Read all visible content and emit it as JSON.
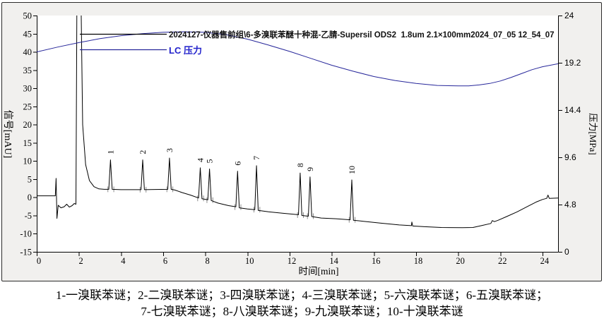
{
  "legend": {
    "title": "2024127-仪器售前组\\6-多溴联苯醚十种混-乙腈-Supersil ODS2  1.8um 2.1×100mm2024_07_05 12_54_07",
    "pressure_label": "LC 压力"
  },
  "caption": {
    "line1": "1-一溴联苯谜；2-二溴联苯谜；3-四溴联苯谜；4-三溴联苯谜；5-六溴联苯谜；6-五溴联苯谜；",
    "line2": "7-七溴联苯谜；8-八溴联苯谜；9-九溴联苯谜；10-十溴联苯谜"
  },
  "colors": {
    "signal": "#000000",
    "pressure": "#26269a",
    "pressure_text": "#2222cc",
    "integration_mark": "#8a8a8a",
    "frame_bg": "#f1f0ee",
    "plot_bg": "#ffffff"
  },
  "chart_data": {
    "type": "line",
    "title": "2024127-仪器售前组\\6-多溴联苯醚十种混-乙腈-Supersil ODS2  1.8um 2.1×100mm2024_07_05 12_54_07",
    "xlabel": "时间[min]",
    "ylabel_left": "信号[mAU]",
    "ylabel_right": "压力[MPa]",
    "xlim": [
      0,
      24.74
    ],
    "ylim_left": [
      -15,
      50
    ],
    "ylim_right": [
      0,
      24
    ],
    "x_ticks": [
      0,
      2,
      4,
      6,
      8,
      10,
      12,
      14,
      16,
      18,
      20,
      22,
      24
    ],
    "left_ticks": [
      50,
      45,
      40,
      35,
      30,
      25,
      20,
      15,
      10,
      5,
      0,
      -5,
      -10,
      -15
    ],
    "right_ticks": [
      24,
      19.2,
      14.4,
      9.6,
      4.8,
      0
    ],
    "grid": false,
    "legend_position": "top-left",
    "series": [
      {
        "name": "信号",
        "axis": "left",
        "unit": "mAU",
        "points": [
          [
            0,
            0.4
          ],
          [
            0.5,
            0.4
          ],
          [
            0.88,
            0.4
          ],
          [
            0.92,
            5.2
          ],
          [
            0.96,
            -5.8
          ],
          [
            1.02,
            -2.2
          ],
          [
            1.15,
            -2.9
          ],
          [
            1.3,
            -2.6
          ],
          [
            1.42,
            -1.9
          ],
          [
            1.55,
            -2.7
          ],
          [
            1.68,
            -2.3
          ],
          [
            1.78,
            -1.7
          ],
          [
            1.86,
            -1.9
          ],
          [
            1.91,
            60
          ],
          [
            2.09,
            60
          ],
          [
            2.18,
            20
          ],
          [
            2.32,
            9
          ],
          [
            2.5,
            4.6
          ],
          [
            2.72,
            2.9
          ],
          [
            2.95,
            2.3
          ],
          [
            3.2,
            2.2
          ],
          [
            3.42,
            2.2
          ],
          [
            3.5,
            10.3
          ],
          [
            3.58,
            2.2
          ],
          [
            4.0,
            2.1
          ],
          [
            4.5,
            2.1
          ],
          [
            4.95,
            2.1
          ],
          [
            5.03,
            10.3
          ],
          [
            5.11,
            2.1
          ],
          [
            5.6,
            2.15
          ],
          [
            6.22,
            2.2
          ],
          [
            6.3,
            10.8
          ],
          [
            6.38,
            2.2
          ],
          [
            6.55,
            2.0
          ],
          [
            6.9,
            1.3
          ],
          [
            7.3,
            0.6
          ],
          [
            7.68,
            -0.2
          ],
          [
            7.76,
            8.1
          ],
          [
            7.84,
            -0.4
          ],
          [
            8.12,
            -0.7
          ],
          [
            8.2,
            7.8
          ],
          [
            8.28,
            -0.9
          ],
          [
            8.6,
            -1.6
          ],
          [
            9.1,
            -2.3
          ],
          [
            9.45,
            -2.6
          ],
          [
            9.53,
            7.2
          ],
          [
            9.61,
            -2.9
          ],
          [
            10.0,
            -3.2
          ],
          [
            10.35,
            -3.4
          ],
          [
            10.43,
            8.7
          ],
          [
            10.51,
            -3.6
          ],
          [
            11.0,
            -4.0
          ],
          [
            11.7,
            -4.4
          ],
          [
            12.42,
            -4.8
          ],
          [
            12.5,
            6.7
          ],
          [
            12.58,
            -5.0
          ],
          [
            12.89,
            -5.2
          ],
          [
            12.97,
            5.6
          ],
          [
            13.05,
            -5.3
          ],
          [
            13.5,
            -5.7
          ],
          [
            14.2,
            -5.9
          ],
          [
            14.87,
            -6.2
          ],
          [
            14.95,
            4.8
          ],
          [
            15.03,
            -6.3
          ],
          [
            15.5,
            -6.6
          ],
          [
            16.3,
            -7.1
          ],
          [
            17.2,
            -7.6
          ],
          [
            17.78,
            -7.8
          ],
          [
            17.8,
            -6.8
          ],
          [
            17.84,
            -7.9
          ],
          [
            18.4,
            -8.1
          ],
          [
            19.2,
            -8.3
          ],
          [
            20.2,
            -8.35
          ],
          [
            20.7,
            -8.3
          ],
          [
            21.1,
            -7.8
          ],
          [
            21.55,
            -7.2
          ],
          [
            21.62,
            -6.4
          ],
          [
            21.72,
            -6.7
          ],
          [
            21.9,
            -6.3
          ],
          [
            22.3,
            -5.3
          ],
          [
            22.8,
            -4.0
          ],
          [
            23.3,
            -2.5
          ],
          [
            23.7,
            -1.3
          ],
          [
            24.0,
            -0.6
          ],
          [
            24.2,
            -0.3
          ],
          [
            24.26,
            0.6
          ],
          [
            24.32,
            -0.3
          ],
          [
            24.74,
            -0.2
          ]
        ]
      },
      {
        "name": "LC 压力",
        "axis": "right",
        "unit": "MPa",
        "points": [
          [
            0,
            20.3
          ],
          [
            1,
            20.8
          ],
          [
            2,
            21.25
          ],
          [
            3,
            21.65
          ],
          [
            4,
            21.95
          ],
          [
            5,
            22.15
          ],
          [
            6,
            22.3
          ],
          [
            7,
            22.35
          ],
          [
            8,
            22.3
          ],
          [
            9,
            22.05
          ],
          [
            10,
            21.6
          ],
          [
            11,
            21.0
          ],
          [
            12,
            20.35
          ],
          [
            13,
            19.65
          ],
          [
            14,
            18.95
          ],
          [
            15,
            18.35
          ],
          [
            16,
            17.8
          ],
          [
            17,
            17.4
          ],
          [
            18,
            17.1
          ],
          [
            19,
            16.9
          ],
          [
            20,
            16.85
          ],
          [
            20.5,
            16.85
          ],
          [
            21,
            16.95
          ],
          [
            21.5,
            17.1
          ],
          [
            22,
            17.35
          ],
          [
            22.5,
            17.7
          ],
          [
            23,
            18.1
          ],
          [
            23.5,
            18.5
          ],
          [
            24,
            18.8
          ],
          [
            24.74,
            19.1
          ]
        ]
      }
    ],
    "peaks": [
      {
        "id": "1",
        "time": 3.5,
        "apex": 10.3,
        "base": 2.2,
        "name": "一溴联苯谜"
      },
      {
        "id": "2",
        "time": 5.03,
        "apex": 10.3,
        "base": 2.1,
        "name": "二溴联苯谜"
      },
      {
        "id": "3",
        "time": 6.3,
        "apex": 10.8,
        "base": 2.2,
        "name": "四溴联苯谜"
      },
      {
        "id": "4",
        "time": 7.76,
        "apex": 8.1,
        "base": -0.3,
        "name": "三溴联苯谜"
      },
      {
        "id": "5",
        "time": 8.2,
        "apex": 7.8,
        "base": -0.8,
        "name": "六溴联苯谜"
      },
      {
        "id": "6",
        "time": 9.53,
        "apex": 7.2,
        "base": -2.7,
        "name": "五溴联苯谜"
      },
      {
        "id": "7",
        "time": 10.43,
        "apex": 8.7,
        "base": -3.4,
        "name": "七溴联苯谜"
      },
      {
        "id": "8",
        "time": 12.5,
        "apex": 6.7,
        "base": -4.9,
        "name": "八溴联苯谜"
      },
      {
        "id": "9",
        "time": 12.97,
        "apex": 5.6,
        "base": -5.2,
        "name": "九溴联苯谜"
      },
      {
        "id": "10",
        "time": 14.95,
        "apex": 4.8,
        "base": -6.2,
        "name": "十溴联苯谜"
      }
    ]
  }
}
